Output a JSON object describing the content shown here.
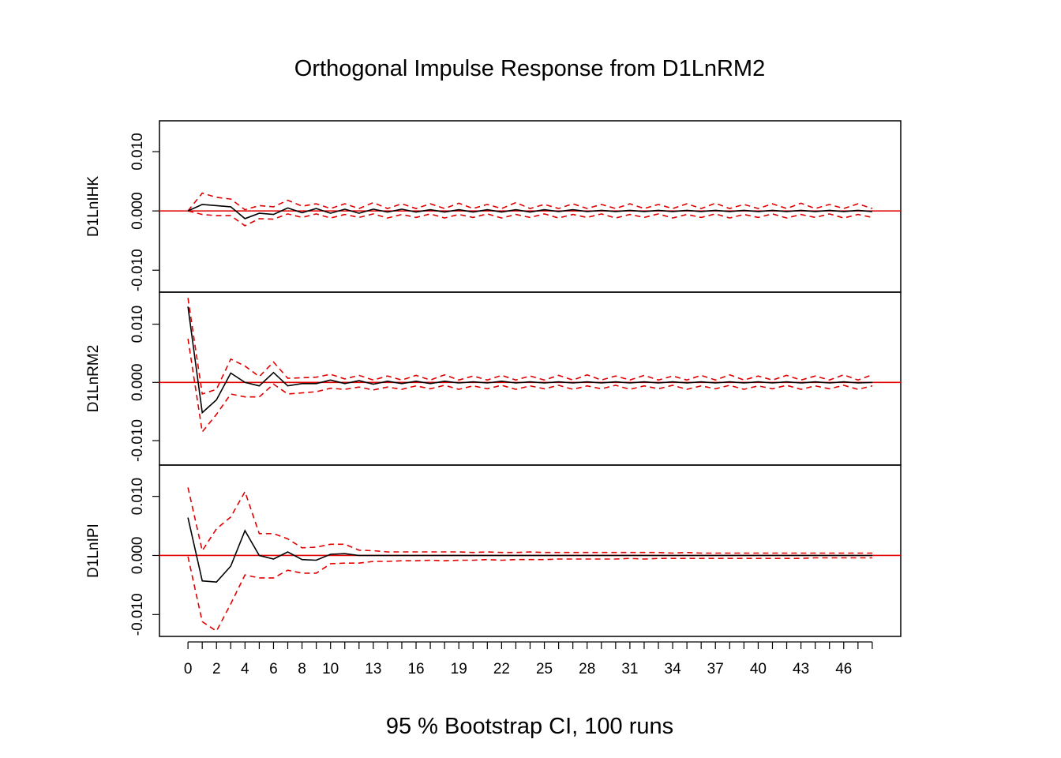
{
  "chart_data": {
    "type": "line",
    "title": "Orthogonal Impulse Response from D1LnRM2",
    "caption": "95 % Bootstrap CI,  100 runs",
    "x_tick_labels": [
      "0",
      "2",
      "4",
      "6",
      "8",
      "10",
      "13",
      "16",
      "19",
      "22",
      "25",
      "28",
      "31",
      "34",
      "37",
      "40",
      "43",
      "46"
    ],
    "x_tick_values": [
      0,
      2,
      4,
      6,
      8,
      10,
      13,
      16,
      19,
      22,
      25,
      28,
      31,
      34,
      37,
      40,
      43,
      46
    ],
    "x_tick_minor": [
      1,
      3,
      5,
      7,
      9,
      11,
      12,
      14,
      15,
      17,
      18,
      20,
      21,
      23,
      24,
      26,
      27,
      29,
      30,
      32,
      33,
      35,
      36,
      38,
      39,
      41,
      42,
      44,
      45,
      47,
      48
    ],
    "xlim": [
      -2,
      50
    ],
    "colors": {
      "response": "#000000",
      "ci": "#e00000",
      "zero": "#e00000"
    },
    "panels": [
      {
        "name": "D1LnIHK",
        "ylim": [
          -0.0137,
          0.0152
        ],
        "y_ticks": [
          -0.01,
          0.0,
          0.01
        ],
        "y_tick_labels": [
          "-0.010",
          "0.000",
          "0.010"
        ],
        "response": [
          0.0,
          0.0011,
          0.0009,
          0.0007,
          -0.0013,
          -0.0004,
          -0.0006,
          0.0005,
          -0.0003,
          0.0004,
          -0.0004,
          0.0003,
          -0.0004,
          0.0003,
          -0.0002,
          0.0003,
          -0.0002,
          0.0002,
          -0.0002,
          0.0002,
          -0.0002,
          0.0002,
          -0.0002,
          0.0002,
          -0.0002,
          0.0002,
          -0.0001,
          0.0002,
          -0.0001,
          0.0001,
          -0.0001,
          0.0001,
          -0.0001,
          0.0001,
          -0.0001,
          0.0001,
          -0.0001,
          0.0001,
          -0.0001,
          0.0001,
          -0.0001,
          0.0001,
          -0.0001,
          0.0001,
          -0.0001,
          0.0001,
          -0.0001,
          0.0001,
          -0.0001
        ],
        "upper": [
          0.0,
          0.003,
          0.0023,
          0.002,
          0.0002,
          0.0009,
          0.0007,
          0.0018,
          0.0008,
          0.0012,
          0.0004,
          0.0012,
          0.0004,
          0.0014,
          0.0004,
          0.0012,
          0.0004,
          0.0012,
          0.0004,
          0.0013,
          0.0004,
          0.0011,
          0.0004,
          0.0014,
          0.0004,
          0.0011,
          0.0004,
          0.0012,
          0.0004,
          0.0011,
          0.0004,
          0.0012,
          0.0004,
          0.0011,
          0.0004,
          0.0012,
          0.0004,
          0.0013,
          0.0004,
          0.0011,
          0.0004,
          0.0012,
          0.0004,
          0.0013,
          0.0004,
          0.0011,
          0.0004,
          0.0012,
          0.0004
        ],
        "lower": [
          0.0,
          -0.0006,
          -0.0008,
          -0.0008,
          -0.0025,
          -0.0013,
          -0.0014,
          -0.0005,
          -0.0011,
          -0.0005,
          -0.0012,
          -0.0006,
          -0.0011,
          -0.0005,
          -0.0012,
          -0.0006,
          -0.0011,
          -0.0005,
          -0.0012,
          -0.0006,
          -0.0011,
          -0.0005,
          -0.0012,
          -0.0006,
          -0.0011,
          -0.0005,
          -0.0012,
          -0.0006,
          -0.0011,
          -0.0005,
          -0.0012,
          -0.0006,
          -0.0011,
          -0.0005,
          -0.0012,
          -0.0006,
          -0.0011,
          -0.0005,
          -0.0012,
          -0.0006,
          -0.0011,
          -0.0005,
          -0.0012,
          -0.0006,
          -0.0011,
          -0.0005,
          -0.0012,
          -0.0006,
          -0.0011
        ]
      },
      {
        "name": "D1LnRM2",
        "ylim": [
          -0.0142,
          0.0155
        ],
        "y_ticks": [
          -0.01,
          0.0,
          0.01
        ],
        "y_tick_labels": [
          "-0.010",
          "0.000",
          "0.010"
        ],
        "response": [
          0.013,
          -0.0052,
          -0.003,
          0.0016,
          0.0,
          -0.0006,
          0.0017,
          -0.0006,
          -0.0002,
          -0.0002,
          0.0004,
          -0.0002,
          0.0003,
          -0.0003,
          0.0002,
          -0.0002,
          0.0002,
          -0.0002,
          0.0002,
          -0.0001,
          0.0001,
          -0.0001,
          0.0002,
          -0.0001,
          0.0001,
          -0.0001,
          0.0001,
          -0.0001,
          0.0001,
          -0.0001,
          0.0001,
          -0.0001,
          0.0001,
          -0.0001,
          0.0001,
          -0.0001,
          0.0001,
          -0.0001,
          0.0001,
          -0.0001,
          0.0001,
          -0.0001,
          0.0001,
          -0.0001,
          0.0001,
          -0.0001,
          0.0001,
          -0.0001,
          0.0
        ],
        "upper": [
          0.0145,
          -0.002,
          -0.0012,
          0.004,
          0.0028,
          0.001,
          0.0035,
          0.0007,
          0.0008,
          0.0009,
          0.0014,
          0.0006,
          0.0012,
          0.0004,
          0.0011,
          0.0004,
          0.0012,
          0.0004,
          0.0013,
          0.0004,
          0.0011,
          0.0004,
          0.0012,
          0.0004,
          0.0011,
          0.0004,
          0.0012,
          0.0004,
          0.0013,
          0.0004,
          0.0011,
          0.0004,
          0.0012,
          0.0004,
          0.0011,
          0.0004,
          0.0012,
          0.0004,
          0.0013,
          0.0004,
          0.0011,
          0.0004,
          0.0012,
          0.0004,
          0.0011,
          0.0004,
          0.0013,
          0.0004,
          0.0013
        ],
        "lower": [
          0.0075,
          -0.0085,
          -0.0055,
          -0.002,
          -0.0025,
          -0.0025,
          -0.0003,
          -0.002,
          -0.0018,
          -0.0016,
          -0.001,
          -0.0012,
          -0.0008,
          -0.0013,
          -0.0008,
          -0.0012,
          -0.0006,
          -0.0011,
          -0.0005,
          -0.0012,
          -0.0006,
          -0.0011,
          -0.0005,
          -0.0012,
          -0.0006,
          -0.0011,
          -0.0005,
          -0.0012,
          -0.0006,
          -0.0011,
          -0.0005,
          -0.0012,
          -0.0006,
          -0.0011,
          -0.0005,
          -0.0012,
          -0.0006,
          -0.0011,
          -0.0005,
          -0.0012,
          -0.0006,
          -0.0011,
          -0.0005,
          -0.0012,
          -0.0006,
          -0.0011,
          -0.0005,
          -0.0012,
          -0.0006
        ]
      },
      {
        "name": "D1LnIPI",
        "ylim": [
          -0.0137,
          0.0153
        ],
        "y_ticks": [
          -0.01,
          0.0,
          0.01
        ],
        "y_tick_labels": [
          "-0.010",
          "0.000",
          "0.010"
        ],
        "response": [
          0.0064,
          -0.0043,
          -0.0045,
          -0.0018,
          0.0042,
          0.0,
          -0.0006,
          0.0006,
          -0.0007,
          -0.0008,
          0.0002,
          0.0003,
          0.0,
          0.0,
          0.0,
          0.0,
          0.0,
          0.0,
          0.0,
          0.0,
          0.0,
          0.0,
          0.0,
          0.0,
          0.0,
          0.0,
          0.0,
          0.0,
          0.0,
          0.0,
          0.0,
          0.0,
          0.0,
          0.0,
          0.0,
          0.0,
          0.0,
          0.0,
          0.0,
          0.0,
          0.0,
          0.0,
          0.0,
          0.0,
          0.0,
          0.0,
          0.0,
          0.0,
          0.0
        ],
        "upper": [
          0.0115,
          0.0008,
          0.0045,
          0.0065,
          0.0108,
          0.0037,
          0.0037,
          0.0028,
          0.0013,
          0.0014,
          0.0019,
          0.0019,
          0.0009,
          0.0008,
          0.0006,
          0.0006,
          0.0006,
          0.0006,
          0.0006,
          0.0006,
          0.0005,
          0.0006,
          0.0005,
          0.0005,
          0.0006,
          0.0005,
          0.0005,
          0.0005,
          0.0005,
          0.0005,
          0.0005,
          0.0005,
          0.0005,
          0.0005,
          0.0004,
          0.0005,
          0.0004,
          0.0004,
          0.0004,
          0.0004,
          0.0004,
          0.0004,
          0.0004,
          0.0004,
          0.0004,
          0.0004,
          0.0004,
          0.0004,
          0.0004
        ],
        "lower": [
          -0.0002,
          -0.0112,
          -0.0128,
          -0.0082,
          -0.0033,
          -0.0038,
          -0.0038,
          -0.0025,
          -0.003,
          -0.003,
          -0.0014,
          -0.0013,
          -0.0013,
          -0.001,
          -0.001,
          -0.0009,
          -0.0009,
          -0.0008,
          -0.0009,
          -0.0008,
          -0.0008,
          -0.0007,
          -0.0008,
          -0.0007,
          -0.0007,
          -0.0007,
          -0.0006,
          -0.0006,
          -0.0006,
          -0.0006,
          -0.0006,
          -0.0005,
          -0.0006,
          -0.0005,
          -0.0005,
          -0.0005,
          -0.0005,
          -0.0005,
          -0.0005,
          -0.0005,
          -0.0005,
          -0.0005,
          -0.0005,
          -0.0005,
          -0.0004,
          -0.0004,
          -0.0004,
          -0.0004,
          -0.0004
        ]
      }
    ]
  }
}
